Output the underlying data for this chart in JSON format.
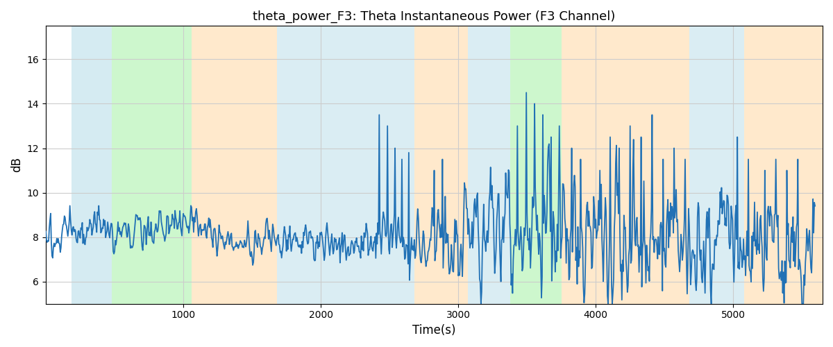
{
  "title": "theta_power_F3: Theta Instantaneous Power (F3 Channel)",
  "xlabel": "Time(s)",
  "ylabel": "dB",
  "xlim": [
    0,
    5650
  ],
  "ylim": [
    5,
    17.5
  ],
  "yticks": [
    6,
    8,
    10,
    12,
    14,
    16
  ],
  "xticks": [
    1000,
    2000,
    3000,
    4000,
    5000
  ],
  "line_color": "#2171b5",
  "line_width": 1.3,
  "background_color": "#ffffff",
  "grid_color": "#cccccc",
  "regions": [
    {
      "start": 185,
      "end": 480,
      "color": "#add8e6",
      "alpha": 0.5
    },
    {
      "start": 480,
      "end": 1060,
      "color": "#90ee90",
      "alpha": 0.45
    },
    {
      "start": 1060,
      "end": 1680,
      "color": "#ffd59a",
      "alpha": 0.5
    },
    {
      "start": 1680,
      "end": 2680,
      "color": "#add8e6",
      "alpha": 0.45
    },
    {
      "start": 2680,
      "end": 3070,
      "color": "#ffd59a",
      "alpha": 0.5
    },
    {
      "start": 3070,
      "end": 3380,
      "color": "#add8e6",
      "alpha": 0.45
    },
    {
      "start": 3380,
      "end": 3750,
      "color": "#90ee90",
      "alpha": 0.45
    },
    {
      "start": 3750,
      "end": 4680,
      "color": "#ffd59a",
      "alpha": 0.5
    },
    {
      "start": 4680,
      "end": 5080,
      "color": "#add8e6",
      "alpha": 0.45
    },
    {
      "start": 5080,
      "end": 5650,
      "color": "#ffd59a",
      "alpha": 0.5
    }
  ],
  "figsize": [
    12.0,
    5.0
  ],
  "dpi": 100
}
